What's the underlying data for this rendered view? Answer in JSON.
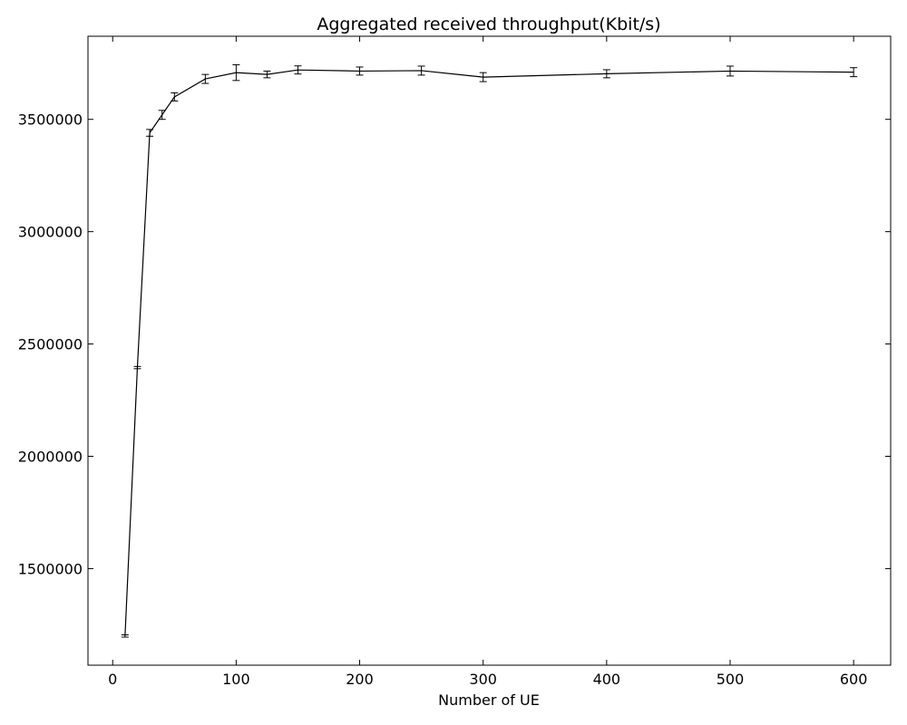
{
  "chart_data": {
    "type": "line",
    "title": "Aggregated received throughput(Kbit/s)",
    "xlabel": "Number of UE",
    "ylabel": "",
    "xlim": [
      -20,
      630
    ],
    "ylim": [
      1070000,
      3870000
    ],
    "x_ticks": [
      0,
      100,
      200,
      300,
      400,
      500,
      600
    ],
    "y_ticks": [
      1500000,
      2000000,
      2500000,
      3000000,
      3500000
    ],
    "grid": false,
    "line_color": "#000000",
    "series": [
      {
        "points": [
          {
            "x": 10,
            "y": 1200000,
            "err": 5000
          },
          {
            "x": 20,
            "y": 2395000,
            "err": 5000
          },
          {
            "x": 30,
            "y": 3440000,
            "err": 15000
          },
          {
            "x": 40,
            "y": 3520000,
            "err": 20000
          },
          {
            "x": 50,
            "y": 3600000,
            "err": 18000
          },
          {
            "x": 75,
            "y": 3680000,
            "err": 20000
          },
          {
            "x": 100,
            "y": 3708000,
            "err": 35000
          },
          {
            "x": 125,
            "y": 3700000,
            "err": 15000
          },
          {
            "x": 150,
            "y": 3720000,
            "err": 18000
          },
          {
            "x": 200,
            "y": 3715000,
            "err": 18000
          },
          {
            "x": 250,
            "y": 3717000,
            "err": 20000
          },
          {
            "x": 300,
            "y": 3688000,
            "err": 20000
          },
          {
            "x": 400,
            "y": 3703000,
            "err": 18000
          },
          {
            "x": 500,
            "y": 3715000,
            "err": 22000
          },
          {
            "x": 600,
            "y": 3710000,
            "err": 20000
          }
        ]
      }
    ]
  }
}
